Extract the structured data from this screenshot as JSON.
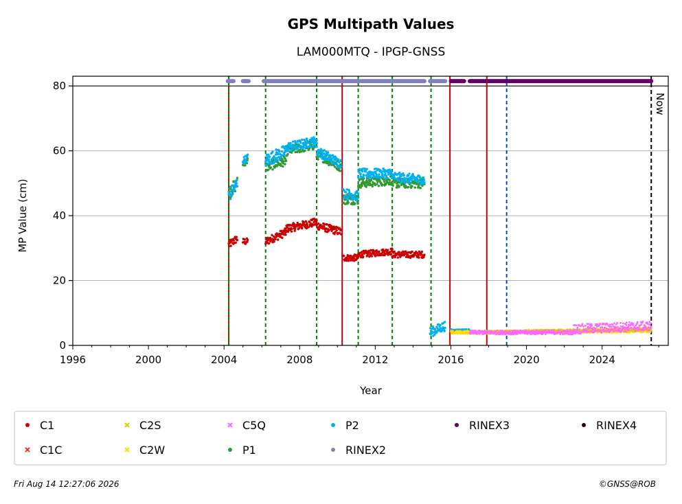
{
  "chart_data": {
    "type": "scatter",
    "title": "GPS Multipath Values",
    "subtitle": "LAM000MTQ - IPGP-GNSS",
    "xlabel": "Year",
    "ylabel": "MP Value (cm)",
    "xlim": [
      1996,
      2027.5
    ],
    "ylim": [
      0,
      83
    ],
    "xticks": [
      "1996",
      "2000",
      "2004",
      "2008",
      "2012",
      "2016",
      "2020",
      "2024"
    ],
    "yticks": [
      "0",
      "20",
      "40",
      "60",
      "80"
    ],
    "grid": "horizontal",
    "legend_position": "bottom",
    "now_label": "Now",
    "now_year": 2026.6,
    "vertical_markers": [
      {
        "year": 2004.25,
        "kind": "receiver",
        "color": "#cc0000"
      },
      {
        "year": 2004.25,
        "kind": "antenna",
        "color": "#008000"
      },
      {
        "year": 2006.2,
        "kind": "antenna",
        "color": "#008000"
      },
      {
        "year": 2008.9,
        "kind": "antenna",
        "color": "#008000"
      },
      {
        "year": 2010.25,
        "kind": "receiver",
        "color": "#cc0000"
      },
      {
        "year": 2011.1,
        "kind": "antenna",
        "color": "#008000"
      },
      {
        "year": 2012.9,
        "kind": "antenna",
        "color": "#008000"
      },
      {
        "year": 2014.95,
        "kind": "antenna",
        "color": "#008000"
      },
      {
        "year": 2015.95,
        "kind": "receiver",
        "color": "#cc0000"
      },
      {
        "year": 2017.9,
        "kind": "receiver",
        "color": "#cc0000"
      },
      {
        "year": 2018.95,
        "kind": "other",
        "color": "#0050a0"
      }
    ],
    "rinex_bars": [
      {
        "name": "RINEX2",
        "color": "#8080c0",
        "ranges": [
          [
            2004.2,
            2004.5
          ],
          [
            2005.0,
            2005.3
          ],
          [
            2006.1,
            2014.6
          ],
          [
            2014.9,
            2015.7
          ]
        ]
      },
      {
        "name": "RINEX3",
        "color": "#660066",
        "ranges": [
          [
            2016.0,
            2016.7
          ],
          [
            2017.0,
            2026.6
          ]
        ]
      }
    ],
    "series": [
      {
        "name": "C1",
        "color": "#cc0000",
        "marker": "dot",
        "segments": [
          {
            "x": [
              2004.25,
              2004.7
            ],
            "y": [
              31,
              33
            ],
            "spread": 2.5
          },
          {
            "x": [
              2005.0,
              2005.25
            ],
            "y": [
              32,
              32
            ],
            "spread": 2
          },
          {
            "x": [
              2006.2,
              2007.3
            ],
            "y": [
              32,
              35
            ],
            "spread": 2.5
          },
          {
            "x": [
              2007.3,
              2008.9
            ],
            "y": [
              36,
              38
            ],
            "spread": 2.5
          },
          {
            "x": [
              2008.9,
              2010.2
            ],
            "y": [
              37,
              35
            ],
            "spread": 2.5
          },
          {
            "x": [
              2010.3,
              2011.1
            ],
            "y": [
              27,
              27
            ],
            "spread": 2
          },
          {
            "x": [
              2011.1,
              2012.9
            ],
            "y": [
              28,
              29
            ],
            "spread": 2
          },
          {
            "x": [
              2012.9,
              2014.6
            ],
            "y": [
              28,
              28
            ],
            "spread": 2
          }
        ]
      },
      {
        "name": "C1C",
        "color": "#ee3333",
        "marker": "x",
        "segments": [
          {
            "x": [
              2016.0,
              2017.9
            ],
            "y": [
              4,
              4
            ],
            "spread": 0.6
          }
        ]
      },
      {
        "name": "C2S",
        "color": "#ddcc00",
        "marker": "x",
        "segments": [
          {
            "x": [
              2017.9,
              2026.6
            ],
            "y": [
              4,
              5
            ],
            "spread": 1
          }
        ]
      },
      {
        "name": "C2W",
        "color": "#ffdd00",
        "marker": "x",
        "segments": [
          {
            "x": [
              2016.0,
              2026.6
            ],
            "y": [
              4,
              4.5
            ],
            "spread": 1
          }
        ]
      },
      {
        "name": "C5Q",
        "color": "#ff66ff",
        "marker": "x",
        "segments": [
          {
            "x": [
              2017.0,
              2022.5
            ],
            "y": [
              4,
              4
            ],
            "spread": 1.2
          },
          {
            "x": [
              2022.5,
              2026.6
            ],
            "y": [
              5,
              6
            ],
            "spread": 3
          }
        ]
      },
      {
        "name": "P1",
        "color": "#339933",
        "marker": "dot",
        "segments": [
          {
            "x": [
              2004.25,
              2004.7
            ],
            "y": [
              47,
              50
            ],
            "spread": 4
          },
          {
            "x": [
              2005.0,
              2005.25
            ],
            "y": [
              56,
              57
            ],
            "spread": 2
          },
          {
            "x": [
              2006.2,
              2007.3
            ],
            "y": [
              55,
              57
            ],
            "spread": 3
          },
          {
            "x": [
              2007.3,
              2008.9
            ],
            "y": [
              60,
              62
            ],
            "spread": 3
          },
          {
            "x": [
              2008.9,
              2010.2
            ],
            "y": [
              59,
              55
            ],
            "spread": 3
          },
          {
            "x": [
              2010.3,
              2011.1
            ],
            "y": [
              45,
              45
            ],
            "spread": 3
          },
          {
            "x": [
              2011.1,
              2012.9
            ],
            "y": [
              50,
              51
            ],
            "spread": 3
          },
          {
            "x": [
              2012.9,
              2014.6
            ],
            "y": [
              50,
              50
            ],
            "spread": 3
          }
        ]
      },
      {
        "name": "P2",
        "color": "#00b0f0",
        "marker": "dot",
        "segments": [
          {
            "x": [
              2004.25,
              2004.7
            ],
            "y": [
              46,
              50
            ],
            "spread": 4
          },
          {
            "x": [
              2005.0,
              2005.25
            ],
            "y": [
              57,
              58
            ],
            "spread": 2
          },
          {
            "x": [
              2006.2,
              2007.3
            ],
            "y": [
              57,
              60
            ],
            "spread": 4
          },
          {
            "x": [
              2007.3,
              2008.9
            ],
            "y": [
              61,
              63
            ],
            "spread": 3
          },
          {
            "x": [
              2008.9,
              2010.2
            ],
            "y": [
              60,
              56
            ],
            "spread": 3
          },
          {
            "x": [
              2010.3,
              2011.1
            ],
            "y": [
              47,
              46
            ],
            "spread": 3
          },
          {
            "x": [
              2011.1,
              2012.9
            ],
            "y": [
              53,
              53
            ],
            "spread": 3
          },
          {
            "x": [
              2012.9,
              2014.6
            ],
            "y": [
              52,
              51
            ],
            "spread": 3
          },
          {
            "x": [
              2014.9,
              2015.7
            ],
            "y": [
              4,
              6
            ],
            "spread": 3
          },
          {
            "x": [
              2016.0,
              2017.0
            ],
            "y": [
              4.5,
              4.5
            ],
            "spread": 1
          }
        ]
      },
      {
        "name": "RINEX2",
        "color": "#8080c0",
        "marker": "dot",
        "segments": []
      },
      {
        "name": "RINEX3",
        "color": "#660066",
        "marker": "dot",
        "segments": []
      },
      {
        "name": "RINEX4",
        "color": "#220022",
        "marker": "dot",
        "segments": []
      }
    ]
  },
  "footer": {
    "date": "Fri Aug 14 12:27:06 2026",
    "credit": "©GNSS@ROB"
  }
}
